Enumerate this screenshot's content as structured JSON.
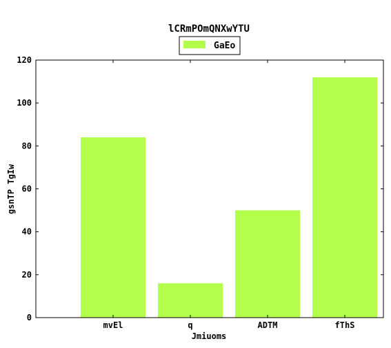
{
  "chart_data": {
    "type": "bar",
    "title": "lCRmPOmQNXwYTU",
    "xlabel": "Jmiuoms",
    "ylabel": "gsnTP TgIw",
    "categories": [
      "mvEl",
      "q",
      "ADTM",
      "fThS"
    ],
    "series": [
      {
        "name": "GaEo",
        "values": [
          84,
          16,
          50,
          112
        ],
        "color": "#b2ff4c"
      }
    ],
    "ylim": [
      0,
      120
    ],
    "yticks": [
      0,
      20,
      40,
      60,
      80,
      100,
      120
    ],
    "grid": false,
    "legend_position": "top-center"
  }
}
